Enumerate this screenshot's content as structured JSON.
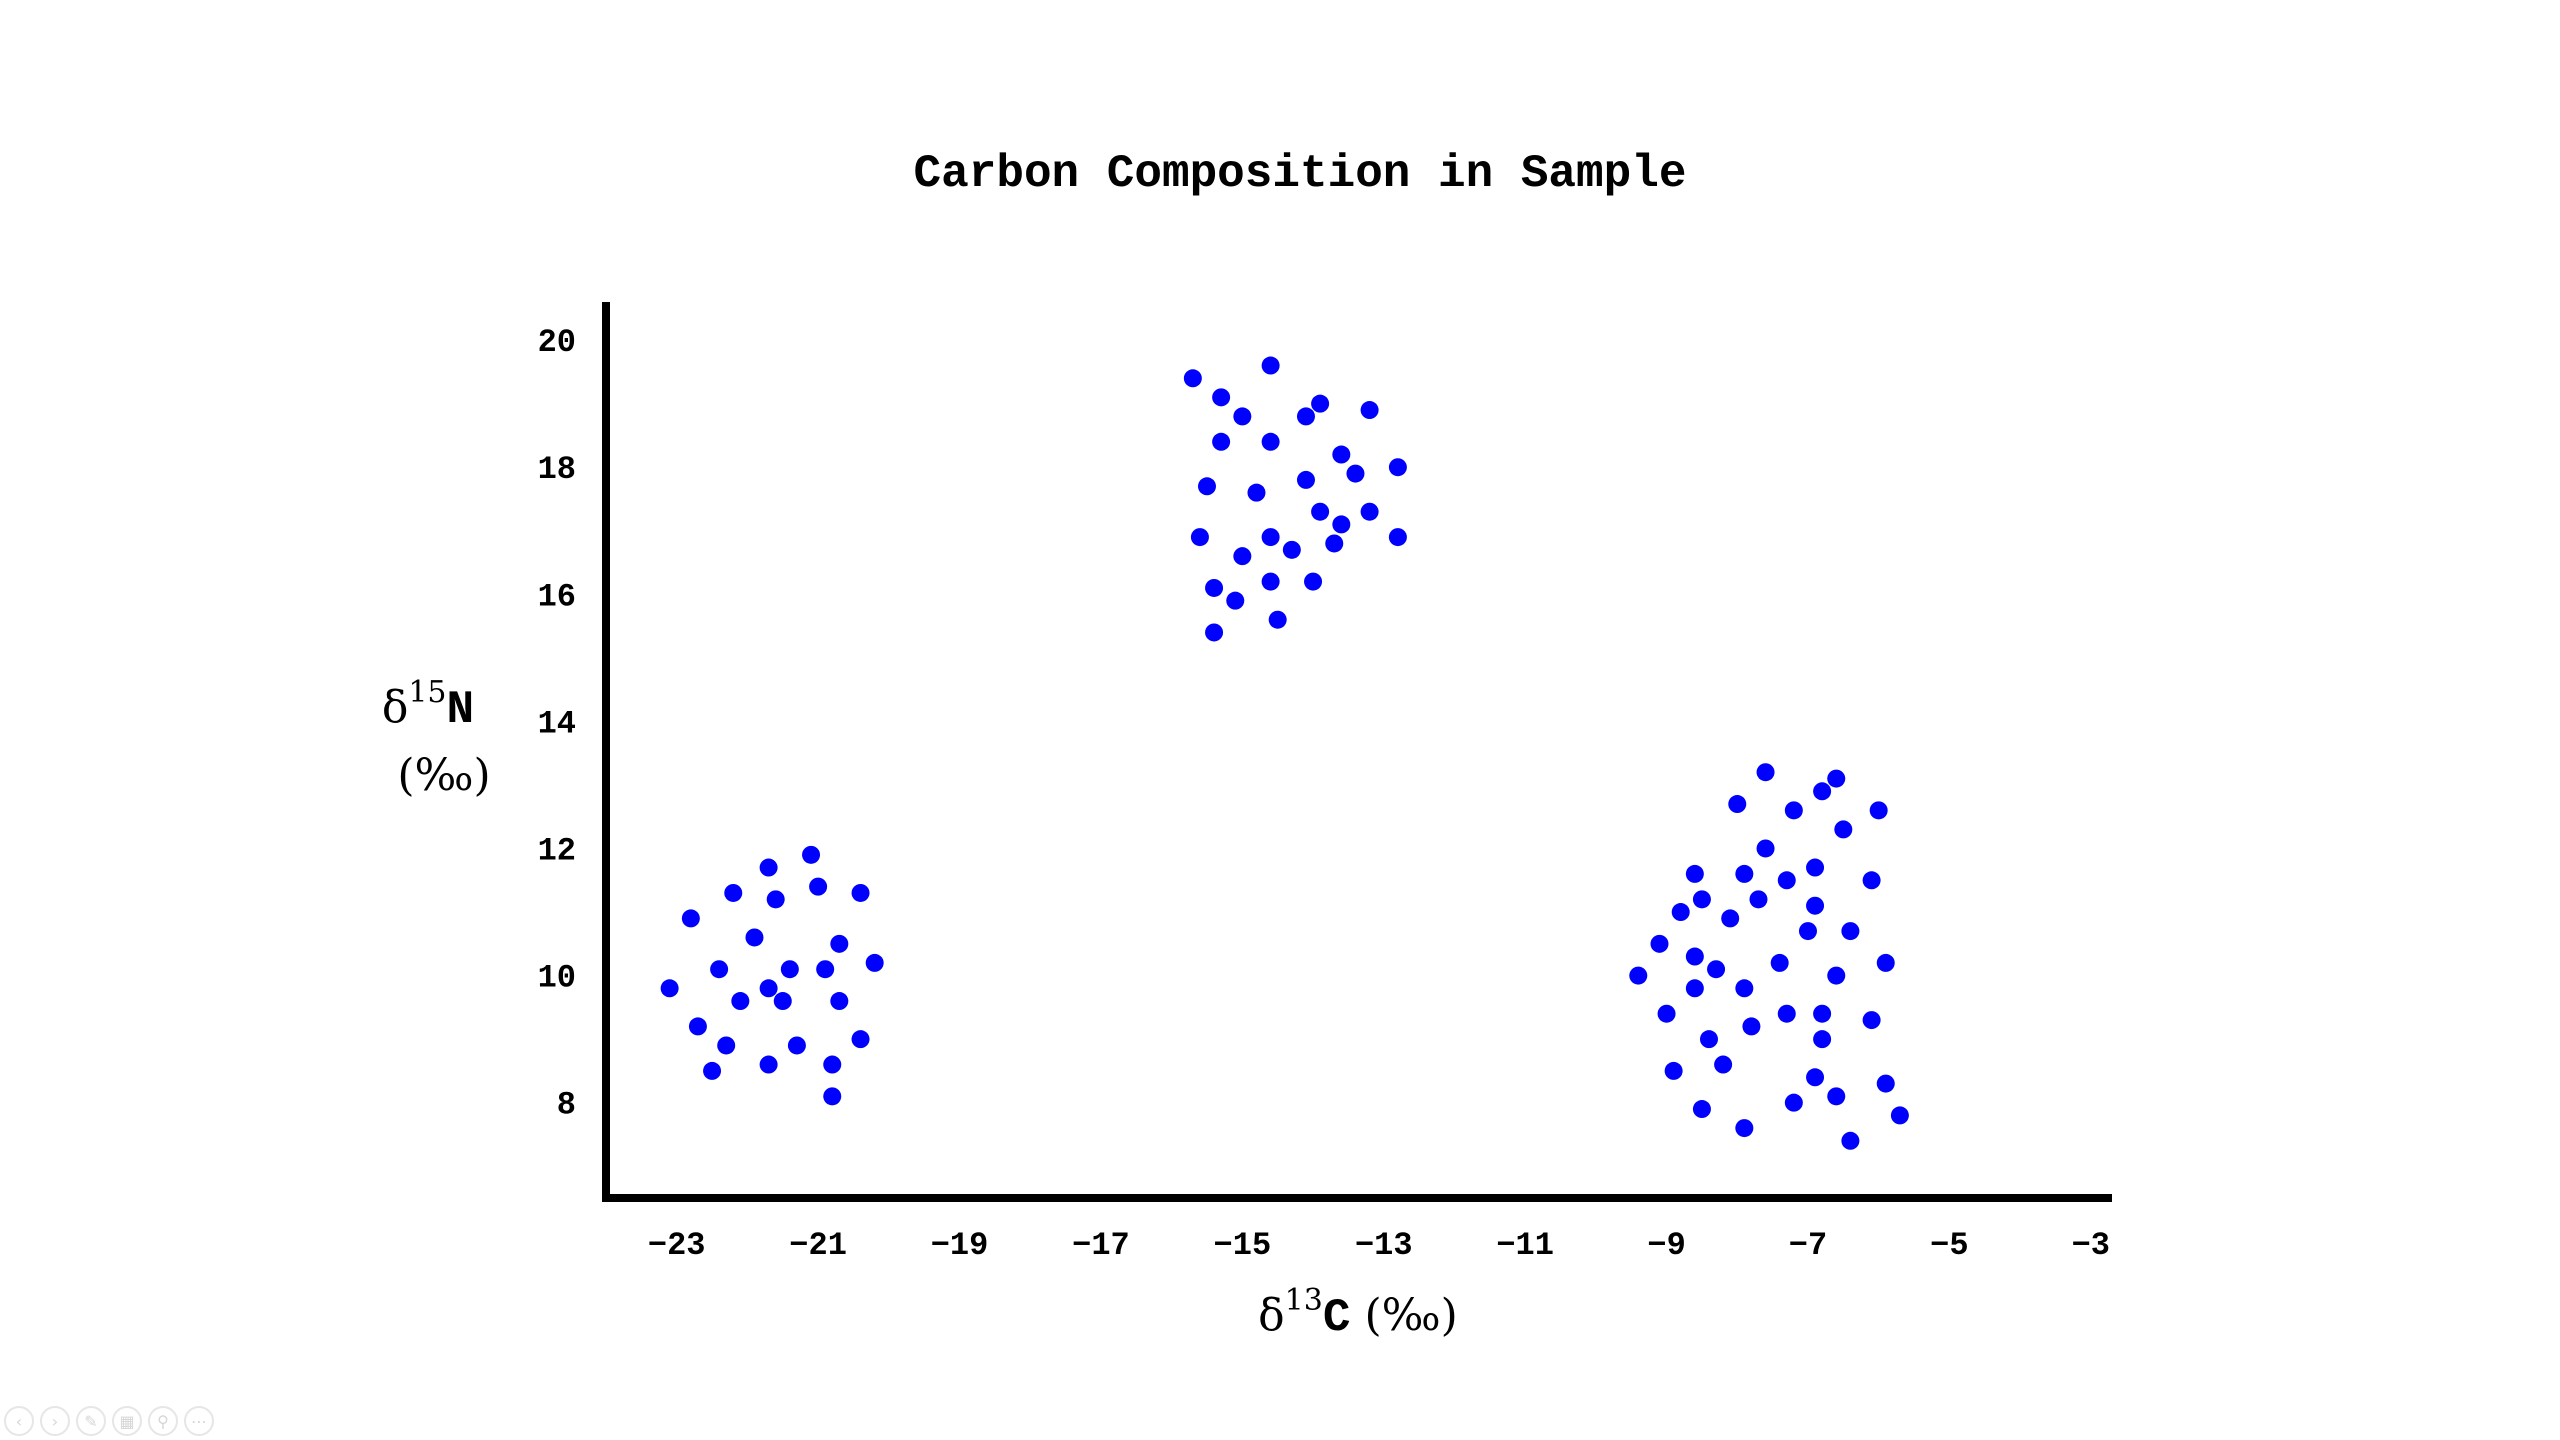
{
  "chart_data": {
    "type": "scatter",
    "title": "Carbon Composition in Sample",
    "xlabel": {
      "symbol": "δ",
      "sup": "13",
      "element": "C",
      "unit": "(‰)"
    },
    "ylabel": {
      "symbol": "δ",
      "sup": "15",
      "element": "N",
      "unit": "(‰)"
    },
    "xticks": [
      -23,
      -21,
      -19,
      -17,
      -15,
      -13,
      -11,
      -9,
      -7,
      -5,
      -3
    ],
    "yticks": [
      8,
      10,
      12,
      14,
      16,
      18,
      20
    ],
    "xlim": [
      -24.0,
      -2.7
    ],
    "ylim": [
      6.5,
      20.6
    ],
    "grid": false,
    "legend": "none",
    "marker_color": "#0000ff",
    "series": [
      {
        "points": [
          {
            "x": -23.1,
            "y": 9.8
          },
          {
            "x": -22.8,
            "y": 10.9
          },
          {
            "x": -22.7,
            "y": 9.2
          },
          {
            "x": -22.5,
            "y": 8.5
          },
          {
            "x": -22.4,
            "y": 10.1
          },
          {
            "x": -22.3,
            "y": 8.9
          },
          {
            "x": -22.2,
            "y": 11.3
          },
          {
            "x": -22.1,
            "y": 9.6
          },
          {
            "x": -21.9,
            "y": 10.6
          },
          {
            "x": -21.7,
            "y": 11.7
          },
          {
            "x": -21.7,
            "y": 9.8
          },
          {
            "x": -21.7,
            "y": 8.6
          },
          {
            "x": -21.6,
            "y": 11.2
          },
          {
            "x": -21.5,
            "y": 9.6
          },
          {
            "x": -21.4,
            "y": 10.1
          },
          {
            "x": -21.3,
            "y": 8.9
          },
          {
            "x": -21.1,
            "y": 11.9
          },
          {
            "x": -21.0,
            "y": 11.4
          },
          {
            "x": -20.9,
            "y": 10.1
          },
          {
            "x": -20.8,
            "y": 8.6
          },
          {
            "x": -20.8,
            "y": 8.1
          },
          {
            "x": -20.7,
            "y": 10.5
          },
          {
            "x": -20.7,
            "y": 9.6
          },
          {
            "x": -20.4,
            "y": 11.3
          },
          {
            "x": -20.4,
            "y": 9.0
          },
          {
            "x": -20.2,
            "y": 10.2
          }
        ]
      },
      {
        "points": [
          {
            "x": -15.7,
            "y": 19.4
          },
          {
            "x": -15.6,
            "y": 16.9
          },
          {
            "x": -15.5,
            "y": 17.7
          },
          {
            "x": -15.4,
            "y": 15.4
          },
          {
            "x": -15.4,
            "y": 16.1
          },
          {
            "x": -15.3,
            "y": 18.4
          },
          {
            "x": -15.3,
            "y": 19.1
          },
          {
            "x": -15.1,
            "y": 15.9
          },
          {
            "x": -15.0,
            "y": 18.8
          },
          {
            "x": -15.0,
            "y": 16.6
          },
          {
            "x": -14.8,
            "y": 17.6
          },
          {
            "x": -14.6,
            "y": 19.6
          },
          {
            "x": -14.6,
            "y": 16.9
          },
          {
            "x": -14.6,
            "y": 18.4
          },
          {
            "x": -14.6,
            "y": 16.2
          },
          {
            "x": -14.5,
            "y": 15.6
          },
          {
            "x": -14.3,
            "y": 16.7
          },
          {
            "x": -14.1,
            "y": 18.8
          },
          {
            "x": -14.1,
            "y": 17.8
          },
          {
            "x": -14.0,
            "y": 16.2
          },
          {
            "x": -13.9,
            "y": 19.0
          },
          {
            "x": -13.9,
            "y": 17.3
          },
          {
            "x": -13.7,
            "y": 16.8
          },
          {
            "x": -13.6,
            "y": 17.1
          },
          {
            "x": -13.6,
            "y": 18.2
          },
          {
            "x": -13.4,
            "y": 17.9
          },
          {
            "x": -13.2,
            "y": 18.9
          },
          {
            "x": -13.2,
            "y": 17.3
          },
          {
            "x": -12.8,
            "y": 18.0
          },
          {
            "x": -12.8,
            "y": 16.9
          }
        ]
      },
      {
        "points": [
          {
            "x": -9.4,
            "y": 10.0
          },
          {
            "x": -9.1,
            "y": 10.5
          },
          {
            "x": -9.0,
            "y": 9.4
          },
          {
            "x": -8.9,
            "y": 8.5
          },
          {
            "x": -8.8,
            "y": 11.0
          },
          {
            "x": -8.6,
            "y": 10.3
          },
          {
            "x": -8.6,
            "y": 9.8
          },
          {
            "x": -8.6,
            "y": 11.6
          },
          {
            "x": -8.5,
            "y": 7.9
          },
          {
            "x": -8.5,
            "y": 11.2
          },
          {
            "x": -8.4,
            "y": 9.0
          },
          {
            "x": -8.3,
            "y": 10.1
          },
          {
            "x": -8.2,
            "y": 8.6
          },
          {
            "x": -8.1,
            "y": 10.9
          },
          {
            "x": -8.0,
            "y": 12.7
          },
          {
            "x": -7.9,
            "y": 11.6
          },
          {
            "x": -7.9,
            "y": 7.6
          },
          {
            "x": -7.9,
            "y": 9.8
          },
          {
            "x": -7.8,
            "y": 9.2
          },
          {
            "x": -7.7,
            "y": 11.2
          },
          {
            "x": -7.6,
            "y": 13.2
          },
          {
            "x": -7.6,
            "y": 12.0
          },
          {
            "x": -7.4,
            "y": 10.2
          },
          {
            "x": -7.3,
            "y": 9.4
          },
          {
            "x": -7.3,
            "y": 11.5
          },
          {
            "x": -7.2,
            "y": 8.0
          },
          {
            "x": -7.2,
            "y": 12.6
          },
          {
            "x": -7.0,
            "y": 10.7
          },
          {
            "x": -6.9,
            "y": 11.1
          },
          {
            "x": -6.9,
            "y": 8.4
          },
          {
            "x": -6.9,
            "y": 11.7
          },
          {
            "x": -6.8,
            "y": 9.4
          },
          {
            "x": -6.8,
            "y": 9.0
          },
          {
            "x": -6.8,
            "y": 12.9
          },
          {
            "x": -6.6,
            "y": 10.0
          },
          {
            "x": -6.6,
            "y": 8.1
          },
          {
            "x": -6.6,
            "y": 13.1
          },
          {
            "x": -6.5,
            "y": 12.3
          },
          {
            "x": -6.4,
            "y": 7.4
          },
          {
            "x": -6.4,
            "y": 10.7
          },
          {
            "x": -6.1,
            "y": 9.3
          },
          {
            "x": -6.1,
            "y": 11.5
          },
          {
            "x": -6.0,
            "y": 12.6
          },
          {
            "x": -5.9,
            "y": 8.3
          },
          {
            "x": -5.9,
            "y": 10.2
          },
          {
            "x": -5.7,
            "y": 7.8
          }
        ]
      }
    ]
  }
}
